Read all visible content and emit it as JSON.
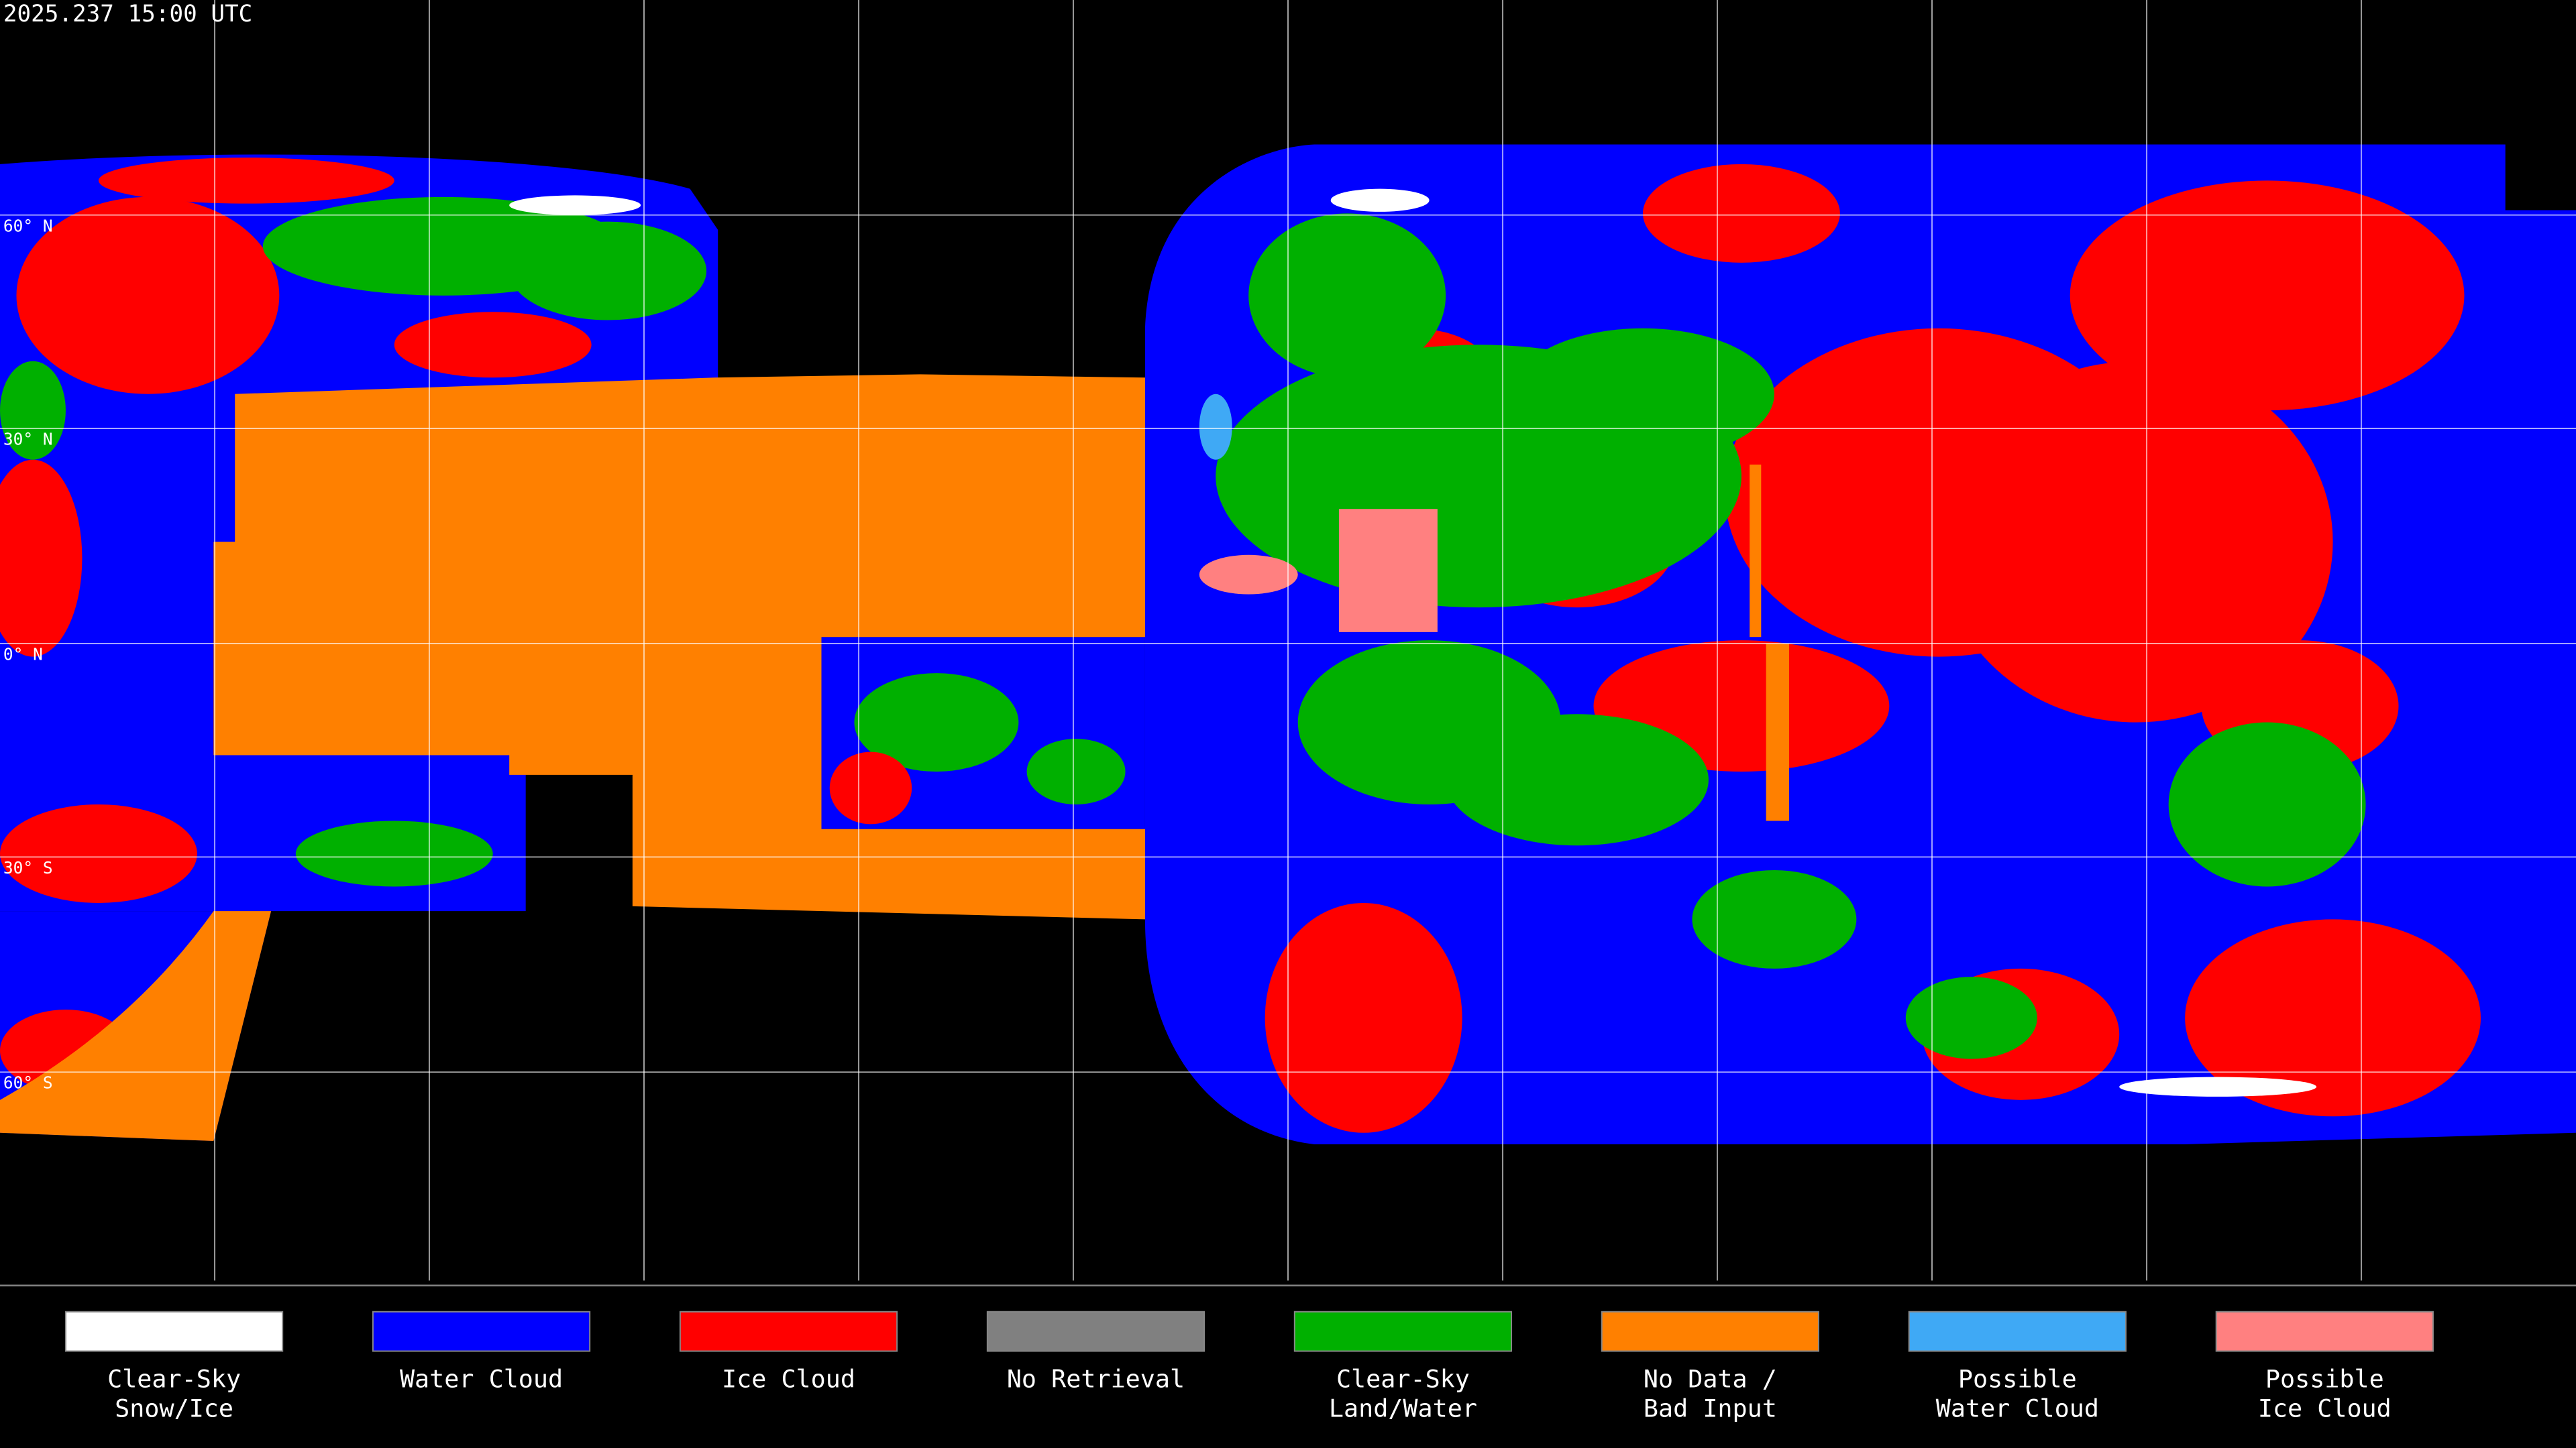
{
  "timestamp": "2025.237 15:00 UTC",
  "latitude_labels": [
    "60° N",
    "30° N",
    "0° N",
    "30° S",
    "60° S"
  ],
  "legend": {
    "items": [
      {
        "lines": [
          "Clear-Sky",
          "Snow/Ice"
        ],
        "color": "#ffffff"
      },
      {
        "lines": [
          "Water Cloud"
        ],
        "color": "#0000ff"
      },
      {
        "lines": [
          "Ice Cloud"
        ],
        "color": "#ff0000"
      },
      {
        "lines": [
          "No Retrieval"
        ],
        "color": "#808080"
      },
      {
        "lines": [
          "Clear-Sky",
          "Land/Water"
        ],
        "color": "#00b000"
      },
      {
        "lines": [
          "No Data /",
          "Bad Input"
        ],
        "color": "#ff8000"
      },
      {
        "lines": [
          "Possible",
          "Water Cloud"
        ],
        "color": "#3fa9f5"
      },
      {
        "lines": [
          "Possible",
          "Ice Cloud"
        ],
        "color": "#ff8080"
      }
    ]
  }
}
